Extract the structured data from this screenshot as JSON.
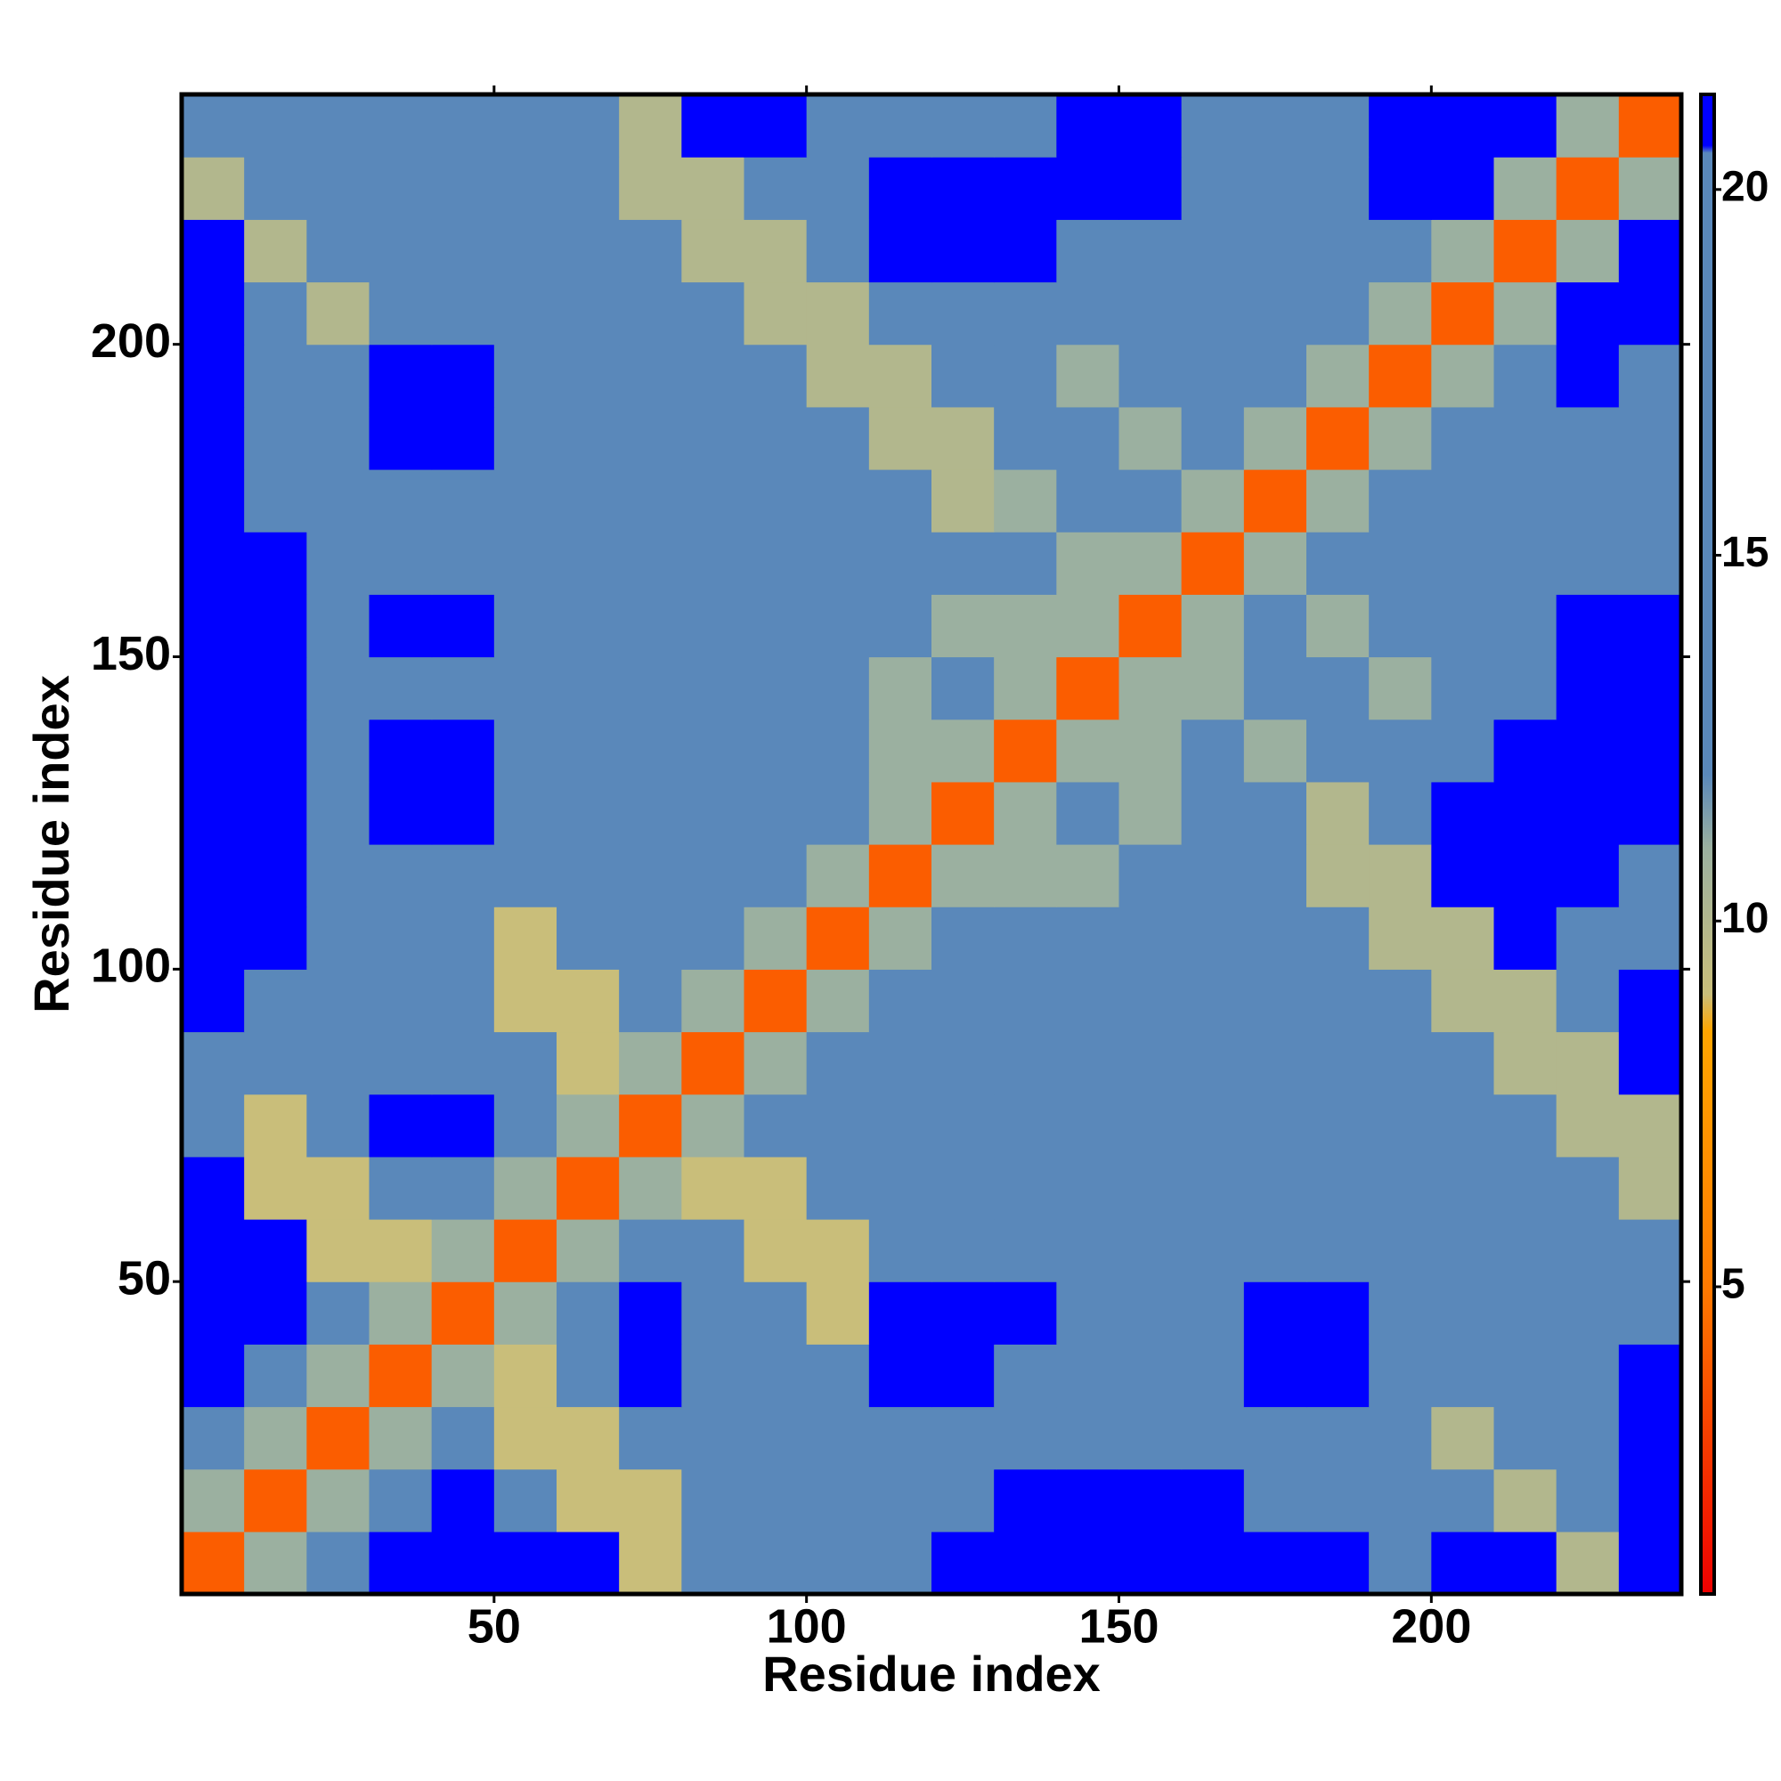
{
  "chart_data": {
    "type": "heatmap",
    "x_label": "Residue index",
    "y_label": "Residue index",
    "x_edges": [
      0,
      10,
      20,
      30,
      40,
      50,
      60,
      70,
      80,
      90,
      100,
      110,
      120,
      130,
      140,
      150,
      160,
      170,
      180,
      190,
      200,
      210,
      220,
      230,
      240
    ],
    "y_edges": [
      0,
      10,
      20,
      30,
      40,
      50,
      60,
      70,
      80,
      90,
      100,
      110,
      120,
      130,
      140,
      150,
      160,
      170,
      180,
      190,
      200,
      210,
      220,
      230,
      240
    ],
    "xlim": [
      0,
      240
    ],
    "ylim": [
      0,
      240
    ],
    "xticks": [
      50,
      100,
      150,
      200
    ],
    "yticks": [
      50,
      100,
      150,
      200
    ],
    "colorbar": {
      "lim": [
        0.8,
        21.3
      ],
      "ticks": [
        5,
        10,
        15,
        20
      ]
    },
    "colorscale": [
      {
        "value": 0.8,
        "color": "#ee0000"
      },
      {
        "value": 5,
        "color": "#ff7a00"
      },
      {
        "value": 8.5,
        "color": "#ffa500"
      },
      {
        "value": 9,
        "color": "#c9be7a"
      },
      {
        "value": 11,
        "color": "#9bb0a0"
      },
      {
        "value": 12,
        "color": "#5a88ba"
      },
      {
        "value": 20.5,
        "color": "#5a88ba"
      },
      {
        "value": 20.6,
        "color": "#0000ff"
      },
      {
        "value": 21.3,
        "color": "#0000ff"
      }
    ],
    "values": [
      [
        4,
        11,
        18,
        21,
        21,
        21,
        21,
        9,
        18,
        18,
        18,
        18,
        21,
        21,
        21,
        21,
        21,
        21,
        21,
        18,
        21,
        21,
        10,
        21
      ],
      [
        11,
        4,
        11,
        18,
        21,
        18,
        9,
        9,
        18,
        18,
        18,
        18,
        18,
        21,
        21,
        21,
        21,
        18,
        18,
        18,
        18,
        10,
        18,
        21
      ],
      [
        18,
        11,
        4,
        11,
        18,
        9,
        9,
        18,
        18,
        18,
        18,
        18,
        18,
        18,
        18,
        18,
        18,
        18,
        18,
        18,
        10,
        18,
        18,
        21
      ],
      [
        21,
        18,
        11,
        4,
        11,
        9,
        18,
        21,
        18,
        18,
        18,
        21,
        21,
        18,
        18,
        18,
        18,
        21,
        21,
        18,
        18,
        18,
        18,
        21
      ],
      [
        21,
        21,
        18,
        11,
        4,
        11,
        18,
        21,
        18,
        18,
        9,
        21,
        21,
        21,
        18,
        18,
        18,
        21,
        21,
        18,
        18,
        18,
        18,
        18
      ],
      [
        21,
        21,
        9,
        9,
        11,
        4,
        11,
        18,
        18,
        9,
        9,
        18,
        18,
        18,
        18,
        18,
        18,
        18,
        18,
        18,
        18,
        18,
        18,
        18
      ],
      [
        21,
        9,
        9,
        18,
        18,
        11,
        4,
        11,
        9,
        9,
        18,
        18,
        18,
        18,
        18,
        18,
        18,
        18,
        18,
        18,
        18,
        18,
        18,
        10
      ],
      [
        18,
        9,
        18,
        21,
        21,
        18,
        11,
        4,
        11,
        18,
        18,
        18,
        18,
        18,
        18,
        18,
        18,
        18,
        18,
        18,
        18,
        18,
        10,
        10
      ],
      [
        18,
        18,
        18,
        18,
        18,
        18,
        9,
        11,
        4,
        11,
        18,
        18,
        18,
        18,
        18,
        18,
        18,
        18,
        18,
        18,
        18,
        10,
        10,
        21
      ],
      [
        21,
        18,
        18,
        18,
        18,
        9,
        9,
        18,
        11,
        4,
        11,
        18,
        18,
        18,
        18,
        18,
        18,
        18,
        18,
        18,
        10,
        10,
        18,
        21
      ],
      [
        21,
        21,
        18,
        18,
        18,
        9,
        18,
        18,
        18,
        11,
        4,
        11,
        18,
        18,
        18,
        18,
        18,
        18,
        18,
        10,
        10,
        21,
        18,
        18
      ],
      [
        21,
        21,
        18,
        18,
        18,
        18,
        18,
        18,
        18,
        18,
        11,
        4,
        11,
        11,
        11,
        18,
        18,
        18,
        10,
        10,
        21,
        21,
        21,
        18
      ],
      [
        21,
        21,
        18,
        21,
        21,
        18,
        18,
        18,
        18,
        18,
        18,
        11,
        4,
        11,
        18,
        11,
        18,
        18,
        10,
        18,
        21,
        21,
        21,
        21
      ],
      [
        21,
        21,
        18,
        21,
        21,
        18,
        18,
        18,
        18,
        18,
        18,
        11,
        11,
        4,
        11,
        11,
        18,
        11,
        18,
        18,
        18,
        21,
        21,
        21
      ],
      [
        21,
        21,
        18,
        18,
        18,
        18,
        18,
        18,
        18,
        18,
        18,
        11,
        18,
        11,
        4,
        11,
        11,
        18,
        18,
        11,
        18,
        18,
        21,
        21
      ],
      [
        21,
        21,
        18,
        21,
        21,
        18,
        18,
        18,
        18,
        18,
        18,
        18,
        11,
        11,
        11,
        4,
        11,
        18,
        11,
        18,
        18,
        18,
        21,
        21
      ],
      [
        21,
        21,
        18,
        18,
        18,
        18,
        18,
        18,
        18,
        18,
        18,
        18,
        18,
        18,
        11,
        11,
        4,
        11,
        18,
        18,
        18,
        18,
        18,
        18
      ],
      [
        21,
        18,
        18,
        18,
        18,
        18,
        18,
        18,
        18,
        18,
        18,
        18,
        10,
        11,
        18,
        18,
        11,
        4,
        11,
        18,
        18,
        18,
        18,
        18
      ],
      [
        21,
        18,
        18,
        21,
        21,
        18,
        18,
        18,
        18,
        18,
        18,
        10,
        10,
        18,
        18,
        11,
        18,
        11,
        4,
        11,
        18,
        18,
        18,
        18
      ],
      [
        21,
        18,
        18,
        21,
        21,
        18,
        18,
        18,
        18,
        18,
        10,
        10,
        18,
        18,
        11,
        18,
        18,
        18,
        11,
        4,
        11,
        18,
        21,
        18
      ],
      [
        21,
        18,
        10,
        18,
        18,
        18,
        18,
        18,
        18,
        10,
        10,
        18,
        18,
        18,
        18,
        18,
        18,
        18,
        18,
        11,
        4,
        11,
        21,
        21
      ],
      [
        21,
        10,
        18,
        18,
        18,
        18,
        18,
        18,
        10,
        10,
        18,
        21,
        21,
        21,
        18,
        18,
        18,
        18,
        18,
        18,
        11,
        4,
        11,
        21
      ],
      [
        10,
        18,
        18,
        18,
        18,
        18,
        18,
        10,
        10,
        18,
        18,
        21,
        21,
        21,
        21,
        21,
        18,
        18,
        18,
        21,
        21,
        11,
        4,
        11
      ],
      [
        18,
        18,
        18,
        18,
        18,
        18,
        18,
        10,
        21,
        21,
        18,
        18,
        18,
        18,
        21,
        21,
        18,
        18,
        18,
        21,
        21,
        21,
        11,
        4
      ]
    ]
  }
}
